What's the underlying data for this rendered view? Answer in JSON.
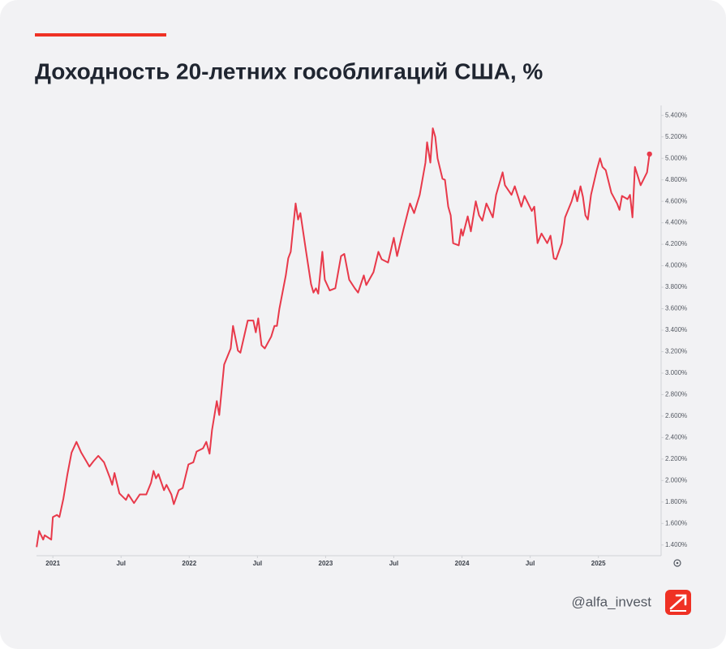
{
  "chart_data": {
    "type": "line",
    "title": "Доходность 20-летних гособлигаций США, %",
    "color": "#e8394a",
    "x": [
      2020.881,
      2020.899,
      2020.929,
      2020.94,
      2020.988,
      2021.0,
      2021.03,
      2021.048,
      2021.077,
      2021.107,
      2021.137,
      2021.173,
      2021.208,
      2021.25,
      2021.268,
      2021.298,
      2021.333,
      2021.375,
      2021.417,
      2021.435,
      2021.452,
      2021.488,
      2021.536,
      2021.554,
      2021.595,
      2021.637,
      2021.685,
      2021.72,
      2021.738,
      2021.756,
      2021.774,
      2021.815,
      2021.833,
      2021.869,
      2021.887,
      2021.923,
      2021.952,
      2021.994,
      2022.03,
      2022.054,
      2022.101,
      2022.125,
      2022.149,
      2022.167,
      2022.202,
      2022.22,
      2022.256,
      2022.304,
      2022.321,
      2022.357,
      2022.375,
      2022.429,
      2022.47,
      2022.488,
      2022.506,
      2022.53,
      2022.554,
      2022.601,
      2022.625,
      2022.643,
      2022.661,
      2022.708,
      2022.726,
      2022.744,
      2022.78,
      2022.798,
      2022.815,
      2022.857,
      2022.893,
      2022.911,
      2022.929,
      2022.946,
      2022.976,
      2022.994,
      2023.03,
      2023.071,
      2023.113,
      2023.137,
      2023.173,
      2023.214,
      2023.238,
      2023.28,
      2023.298,
      2023.351,
      2023.387,
      2023.411,
      2023.458,
      2023.5,
      2023.524,
      2023.571,
      2023.619,
      2023.649,
      2023.69,
      2023.732,
      2023.744,
      2023.768,
      2023.786,
      2023.804,
      2023.821,
      2023.857,
      2023.875,
      2023.899,
      2023.917,
      2023.935,
      2023.976,
      2023.994,
      2024.006,
      2024.042,
      2024.065,
      2024.101,
      2024.125,
      2024.149,
      2024.179,
      2024.226,
      2024.25,
      2024.298,
      2024.315,
      2024.363,
      2024.387,
      2024.435,
      2024.458,
      2024.512,
      2024.53,
      2024.554,
      2024.583,
      2024.625,
      2024.649,
      2024.673,
      2024.69,
      2024.732,
      2024.756,
      2024.804,
      2024.827,
      2024.845,
      2024.869,
      2024.887,
      2024.905,
      2024.923,
      2024.946,
      2024.988,
      2025.012,
      2025.03,
      2025.054,
      2025.095,
      2025.137,
      2025.155,
      2025.173,
      2025.214,
      2025.232,
      2025.25,
      2025.268,
      2025.31,
      2025.357,
      2025.375
    ],
    "values": [
      1.38,
      1.53,
      1.45,
      1.49,
      1.45,
      1.66,
      1.68,
      1.66,
      1.83,
      2.06,
      2.26,
      2.36,
      2.26,
      2.17,
      2.13,
      2.18,
      2.23,
      2.17,
      2.03,
      1.96,
      2.07,
      1.88,
      1.82,
      1.87,
      1.79,
      1.87,
      1.87,
      1.98,
      2.09,
      2.02,
      2.06,
      1.91,
      1.96,
      1.87,
      1.78,
      1.91,
      1.93,
      2.15,
      2.17,
      2.27,
      2.3,
      2.36,
      2.25,
      2.47,
      2.74,
      2.61,
      3.08,
      3.23,
      3.44,
      3.21,
      3.19,
      3.49,
      3.49,
      3.38,
      3.51,
      3.26,
      3.23,
      3.34,
      3.44,
      3.44,
      3.6,
      3.91,
      4.07,
      4.13,
      4.58,
      4.43,
      4.49,
      4.13,
      3.83,
      3.75,
      3.79,
      3.74,
      4.13,
      3.87,
      3.77,
      3.79,
      4.09,
      4.11,
      3.87,
      3.79,
      3.75,
      3.91,
      3.82,
      3.94,
      4.13,
      4.06,
      4.03,
      4.26,
      4.09,
      4.34,
      4.58,
      4.49,
      4.66,
      4.96,
      5.15,
      4.96,
      5.28,
      5.2,
      5.0,
      4.81,
      4.8,
      4.55,
      4.47,
      4.21,
      4.19,
      4.34,
      4.28,
      4.46,
      4.32,
      4.6,
      4.47,
      4.42,
      4.58,
      4.45,
      4.66,
      4.87,
      4.75,
      4.66,
      4.74,
      4.55,
      4.65,
      4.51,
      4.55,
      4.21,
      4.3,
      4.21,
      4.28,
      4.07,
      4.06,
      4.21,
      4.45,
      4.6,
      4.7,
      4.6,
      4.74,
      4.64,
      4.47,
      4.43,
      4.66,
      4.89,
      5.0,
      4.92,
      4.89,
      4.68,
      4.58,
      4.52,
      4.65,
      4.62,
      4.66,
      4.45,
      4.92,
      4.75,
      4.87,
      5.04
    ],
    "xlim": [
      2020.88,
      2025.46
    ],
    "xticks": [
      {
        "value": 2021,
        "label": "2021"
      },
      {
        "value": 2021.5,
        "label": "Jul"
      },
      {
        "value": 2022,
        "label": "2022"
      },
      {
        "value": 2022.5,
        "label": "Jul"
      },
      {
        "value": 2023,
        "label": "2023"
      },
      {
        "value": 2023.5,
        "label": "Jul"
      },
      {
        "value": 2024,
        "label": "2024"
      },
      {
        "value": 2024.5,
        "label": "Jul"
      },
      {
        "value": 2025,
        "label": "2025"
      }
    ],
    "ylim": [
      1.3,
      5.5
    ],
    "yticks": [
      {
        "value": 1.4,
        "label": "1.400%"
      },
      {
        "value": 1.6,
        "label": "1.600%"
      },
      {
        "value": 1.8,
        "label": "1.800%"
      },
      {
        "value": 2.0,
        "label": "2.000%"
      },
      {
        "value": 2.2,
        "label": "2.200%"
      },
      {
        "value": 2.4,
        "label": "2.400%"
      },
      {
        "value": 2.6,
        "label": "2.600%"
      },
      {
        "value": 2.8,
        "label": "2.800%"
      },
      {
        "value": 3.0,
        "label": "3.000%"
      },
      {
        "value": 3.2,
        "label": "3.200%"
      },
      {
        "value": 3.4,
        "label": "3.400%"
      },
      {
        "value": 3.6,
        "label": "3.600%"
      },
      {
        "value": 3.8,
        "label": "3.800%"
      },
      {
        "value": 4.0,
        "label": "4.000%"
      },
      {
        "value": 4.2,
        "label": "4.200%"
      },
      {
        "value": 4.4,
        "label": "4.400%"
      },
      {
        "value": 4.6,
        "label": "4.600%"
      },
      {
        "value": 4.8,
        "label": "4.800%"
      },
      {
        "value": 5.0,
        "label": "5.000%"
      },
      {
        "value": 5.2,
        "label": "5.200%"
      },
      {
        "value": 5.4,
        "label": "5.400%"
      }
    ],
    "grid": false
  },
  "footer": {
    "handle": "@alfa_invest"
  }
}
